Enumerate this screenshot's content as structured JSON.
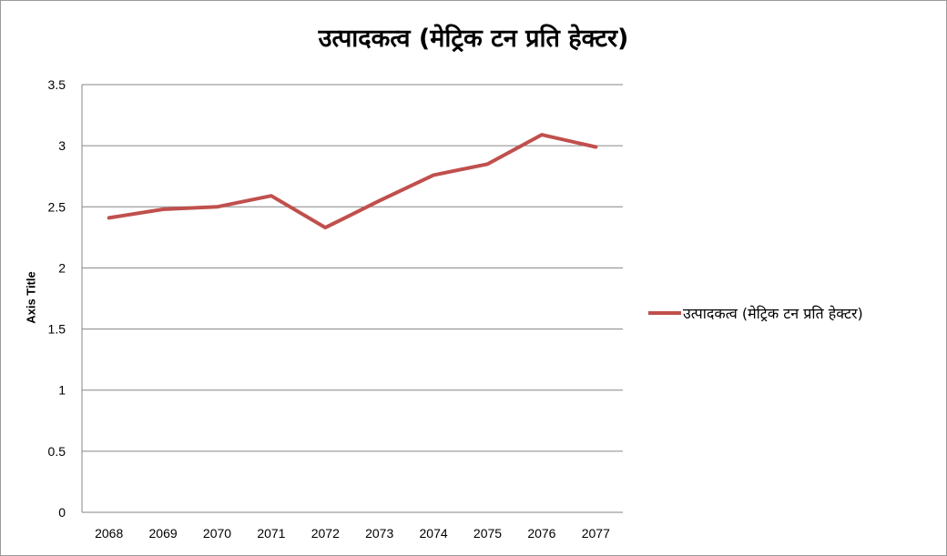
{
  "chart_data": {
    "type": "line",
    "title": "उत्पादकत्व (मेट्रिक टन प्रति हेक्टर)",
    "xlabel": "",
    "ylabel": "Axis Title",
    "categories": [
      "2068",
      "2069",
      "2070",
      "2071",
      "2072",
      "2073",
      "2074",
      "2075",
      "2076",
      "2077"
    ],
    "series": [
      {
        "name": "उत्पादकत्व (मेट्रिक टन प्रति हेक्टर)",
        "color": "#c0504d",
        "values": [
          2.41,
          2.48,
          2.5,
          2.59,
          2.33,
          2.55,
          2.76,
          2.85,
          3.09,
          2.99
        ]
      }
    ],
    "ylim": [
      0,
      3.5
    ],
    "yticks": [
      "0",
      "0.5",
      "1",
      "1.5",
      "2",
      "2.5",
      "3",
      "3.5"
    ],
    "grid": true,
    "legend": "right"
  }
}
